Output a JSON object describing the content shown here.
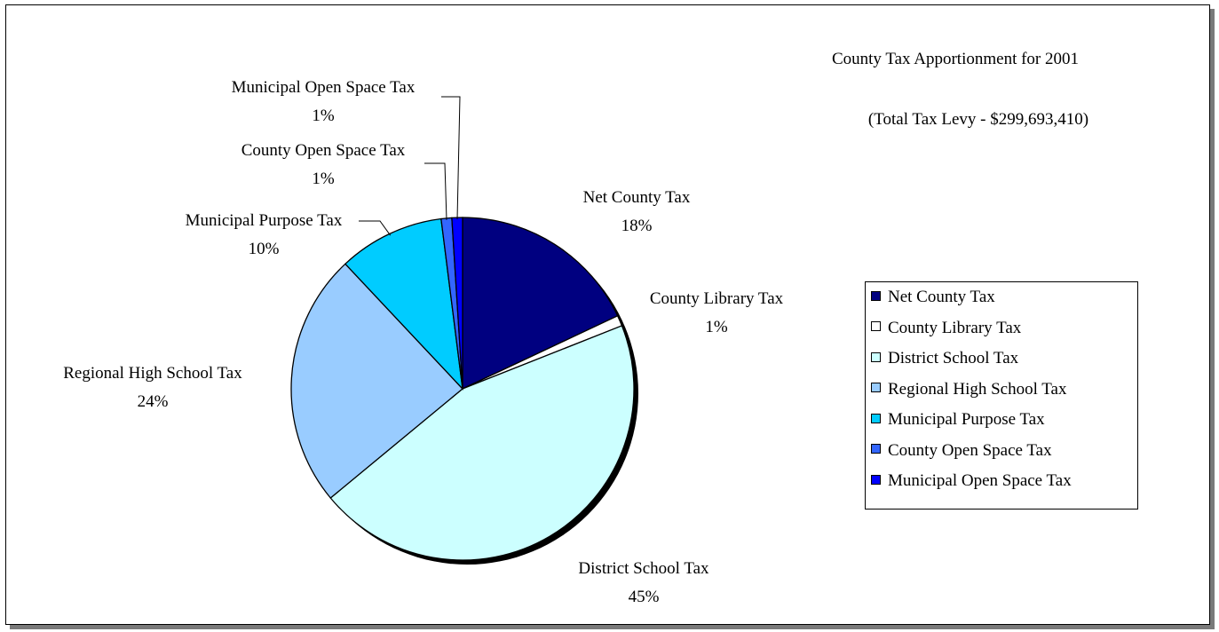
{
  "chart_data": {
    "type": "pie",
    "title": "County Tax Apportionment for 2001",
    "subtitle": "(Total Tax Levy - $299,693,410)",
    "start_angle_deg": 0,
    "direction": "clockwise",
    "legend_position": "right",
    "slices": [
      {
        "label": "Net County Tax",
        "value": 18,
        "pct_label": "18%",
        "color": "#000080"
      },
      {
        "label": "County Library Tax",
        "value": 1,
        "pct_label": "1%",
        "color": "#ffffff"
      },
      {
        "label": "District School Tax",
        "value": 45,
        "pct_label": "45%",
        "color": "#ccffff"
      },
      {
        "label": "Regional High School Tax",
        "value": 24,
        "pct_label": "24%",
        "color": "#99ccff"
      },
      {
        "label": "Municipal Purpose Tax",
        "value": 10,
        "pct_label": "10%",
        "color": "#00ccff"
      },
      {
        "label": "County Open Space Tax",
        "value": 1,
        "pct_label": "1%",
        "color": "#3366ff"
      },
      {
        "label": "Municipal Open Space Tax",
        "value": 1,
        "pct_label": "1%",
        "color": "#0000ff"
      }
    ]
  }
}
